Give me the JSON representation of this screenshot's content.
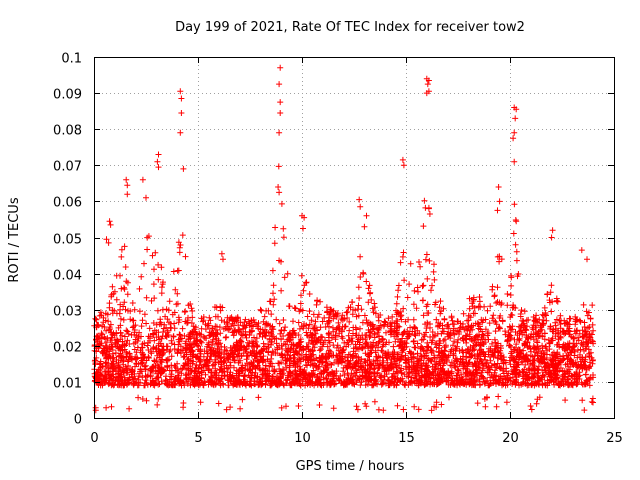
{
  "chart_data": {
    "type": "scatter",
    "title": "Day 199 of 2021, Rate Of TEC Index for receiver tow2",
    "xlabel": "GPS time / hours",
    "ylabel": "ROTI / TECUs",
    "xlim": [
      0,
      25
    ],
    "ylim": [
      0,
      0.1
    ],
    "x_ticks": [
      "0",
      "5",
      "10",
      "15",
      "20",
      "25"
    ],
    "y_ticks": [
      "0",
      "0.01",
      "0.02",
      "0.03",
      "0.04",
      "0.05",
      "0.06",
      "0.07",
      "0.08",
      "0.09",
      "0.1"
    ],
    "grid": true,
    "marker": "+",
    "color": "#ff0000",
    "series": [
      {
        "name": "ROTI tow2",
        "description_of_density": "dense band of samples every ~30 s from 0 to 24 h",
        "x_range": [
          0,
          24
        ],
        "baseline_range": [
          0.005,
          0.028
        ],
        "upper_envelope": [
          [
            0.0,
            0.042
          ],
          [
            0.5,
            0.038
          ],
          [
            1.0,
            0.055
          ],
          [
            1.5,
            0.066
          ],
          [
            2.0,
            0.038
          ],
          [
            2.5,
            0.066
          ],
          [
            3.0,
            0.073
          ],
          [
            3.5,
            0.04
          ],
          [
            4.0,
            0.061
          ],
          [
            4.2,
            0.09
          ],
          [
            4.5,
            0.045
          ],
          [
            5.0,
            0.035
          ],
          [
            5.5,
            0.033
          ],
          [
            6.0,
            0.046
          ],
          [
            6.5,
            0.032
          ],
          [
            7.0,
            0.03
          ],
          [
            7.5,
            0.03
          ],
          [
            8.0,
            0.04
          ],
          [
            8.5,
            0.044
          ],
          [
            8.9,
            0.097
          ],
          [
            9.5,
            0.04
          ],
          [
            10.0,
            0.057
          ],
          [
            10.5,
            0.048
          ],
          [
            11.0,
            0.045
          ],
          [
            11.5,
            0.04
          ],
          [
            12.0,
            0.038
          ],
          [
            12.5,
            0.045
          ],
          [
            12.8,
            0.06
          ],
          [
            13.0,
            0.056
          ],
          [
            13.5,
            0.044
          ],
          [
            14.0,
            0.036
          ],
          [
            14.5,
            0.038
          ],
          [
            14.9,
            0.071
          ],
          [
            15.5,
            0.046
          ],
          [
            16.0,
            0.094
          ],
          [
            16.5,
            0.045
          ],
          [
            17.0,
            0.04
          ],
          [
            17.5,
            0.034
          ],
          [
            18.0,
            0.044
          ],
          [
            18.5,
            0.045
          ],
          [
            19.0,
            0.044
          ],
          [
            19.5,
            0.064
          ],
          [
            20.0,
            0.04
          ],
          [
            20.2,
            0.086
          ],
          [
            20.5,
            0.042
          ],
          [
            21.0,
            0.04
          ],
          [
            21.5,
            0.037
          ],
          [
            22.0,
            0.052
          ],
          [
            22.5,
            0.038
          ],
          [
            23.0,
            0.036
          ],
          [
            23.5,
            0.046
          ],
          [
            24.0,
            0.042
          ]
        ],
        "highlighted_points": [
          {
            "x": 4.15,
            "y": 0.0905
          },
          {
            "x": 4.2,
            "y": 0.0885
          },
          {
            "x": 4.2,
            "y": 0.0845
          },
          {
            "x": 4.15,
            "y": 0.079
          },
          {
            "x": 4.3,
            "y": 0.069
          },
          {
            "x": 8.95,
            "y": 0.097
          },
          {
            "x": 8.9,
            "y": 0.0925
          },
          {
            "x": 8.95,
            "y": 0.0875
          },
          {
            "x": 8.95,
            "y": 0.0845
          },
          {
            "x": 8.9,
            "y": 0.079
          },
          {
            "x": 3.1,
            "y": 0.073
          },
          {
            "x": 3.05,
            "y": 0.071
          },
          {
            "x": 3.1,
            "y": 0.0695
          },
          {
            "x": 1.55,
            "y": 0.066
          },
          {
            "x": 1.6,
            "y": 0.0645
          },
          {
            "x": 1.6,
            "y": 0.062
          },
          {
            "x": 2.35,
            "y": 0.066
          },
          {
            "x": 2.5,
            "y": 0.061
          },
          {
            "x": 14.85,
            "y": 0.0715
          },
          {
            "x": 14.9,
            "y": 0.07
          },
          {
            "x": 16.0,
            "y": 0.094
          },
          {
            "x": 16.1,
            "y": 0.0935
          },
          {
            "x": 16.05,
            "y": 0.0925
          },
          {
            "x": 16.1,
            "y": 0.0905
          },
          {
            "x": 16.0,
            "y": 0.09
          },
          {
            "x": 20.2,
            "y": 0.086
          },
          {
            "x": 20.3,
            "y": 0.0855
          },
          {
            "x": 20.25,
            "y": 0.083
          },
          {
            "x": 20.2,
            "y": 0.079
          },
          {
            "x": 20.15,
            "y": 0.0775
          },
          {
            "x": 20.2,
            "y": 0.071
          },
          {
            "x": 19.45,
            "y": 0.064
          },
          {
            "x": 19.5,
            "y": 0.06
          },
          {
            "x": 19.4,
            "y": 0.0575
          },
          {
            "x": 12.75,
            "y": 0.0605
          },
          {
            "x": 12.8,
            "y": 0.0585
          },
          {
            "x": 8.85,
            "y": 0.064
          },
          {
            "x": 8.9,
            "y": 0.0625
          },
          {
            "x": 10.0,
            "y": 0.056
          },
          {
            "x": 10.1,
            "y": 0.0555
          },
          {
            "x": 10.05,
            "y": 0.0525
          },
          {
            "x": 16.1,
            "y": 0.058
          },
          {
            "x": 16.15,
            "y": 0.0565
          },
          {
            "x": 20.3,
            "y": 0.0545
          },
          {
            "x": 22.05,
            "y": 0.052
          },
          {
            "x": 22.0,
            "y": 0.05
          },
          {
            "x": 0.75,
            "y": 0.0545
          },
          {
            "x": 0.8,
            "y": 0.0535
          },
          {
            "x": 0.6,
            "y": 0.0495
          },
          {
            "x": 0.7,
            "y": 0.0485
          },
          {
            "x": 6.15,
            "y": 0.0455
          },
          {
            "x": 6.2,
            "y": 0.044
          },
          {
            "x": 13.1,
            "y": 0.056
          },
          {
            "x": 13.0,
            "y": 0.053
          },
          {
            "x": 23.45,
            "y": 0.0465
          },
          {
            "x": 23.7,
            "y": 0.044
          }
        ]
      }
    ]
  }
}
